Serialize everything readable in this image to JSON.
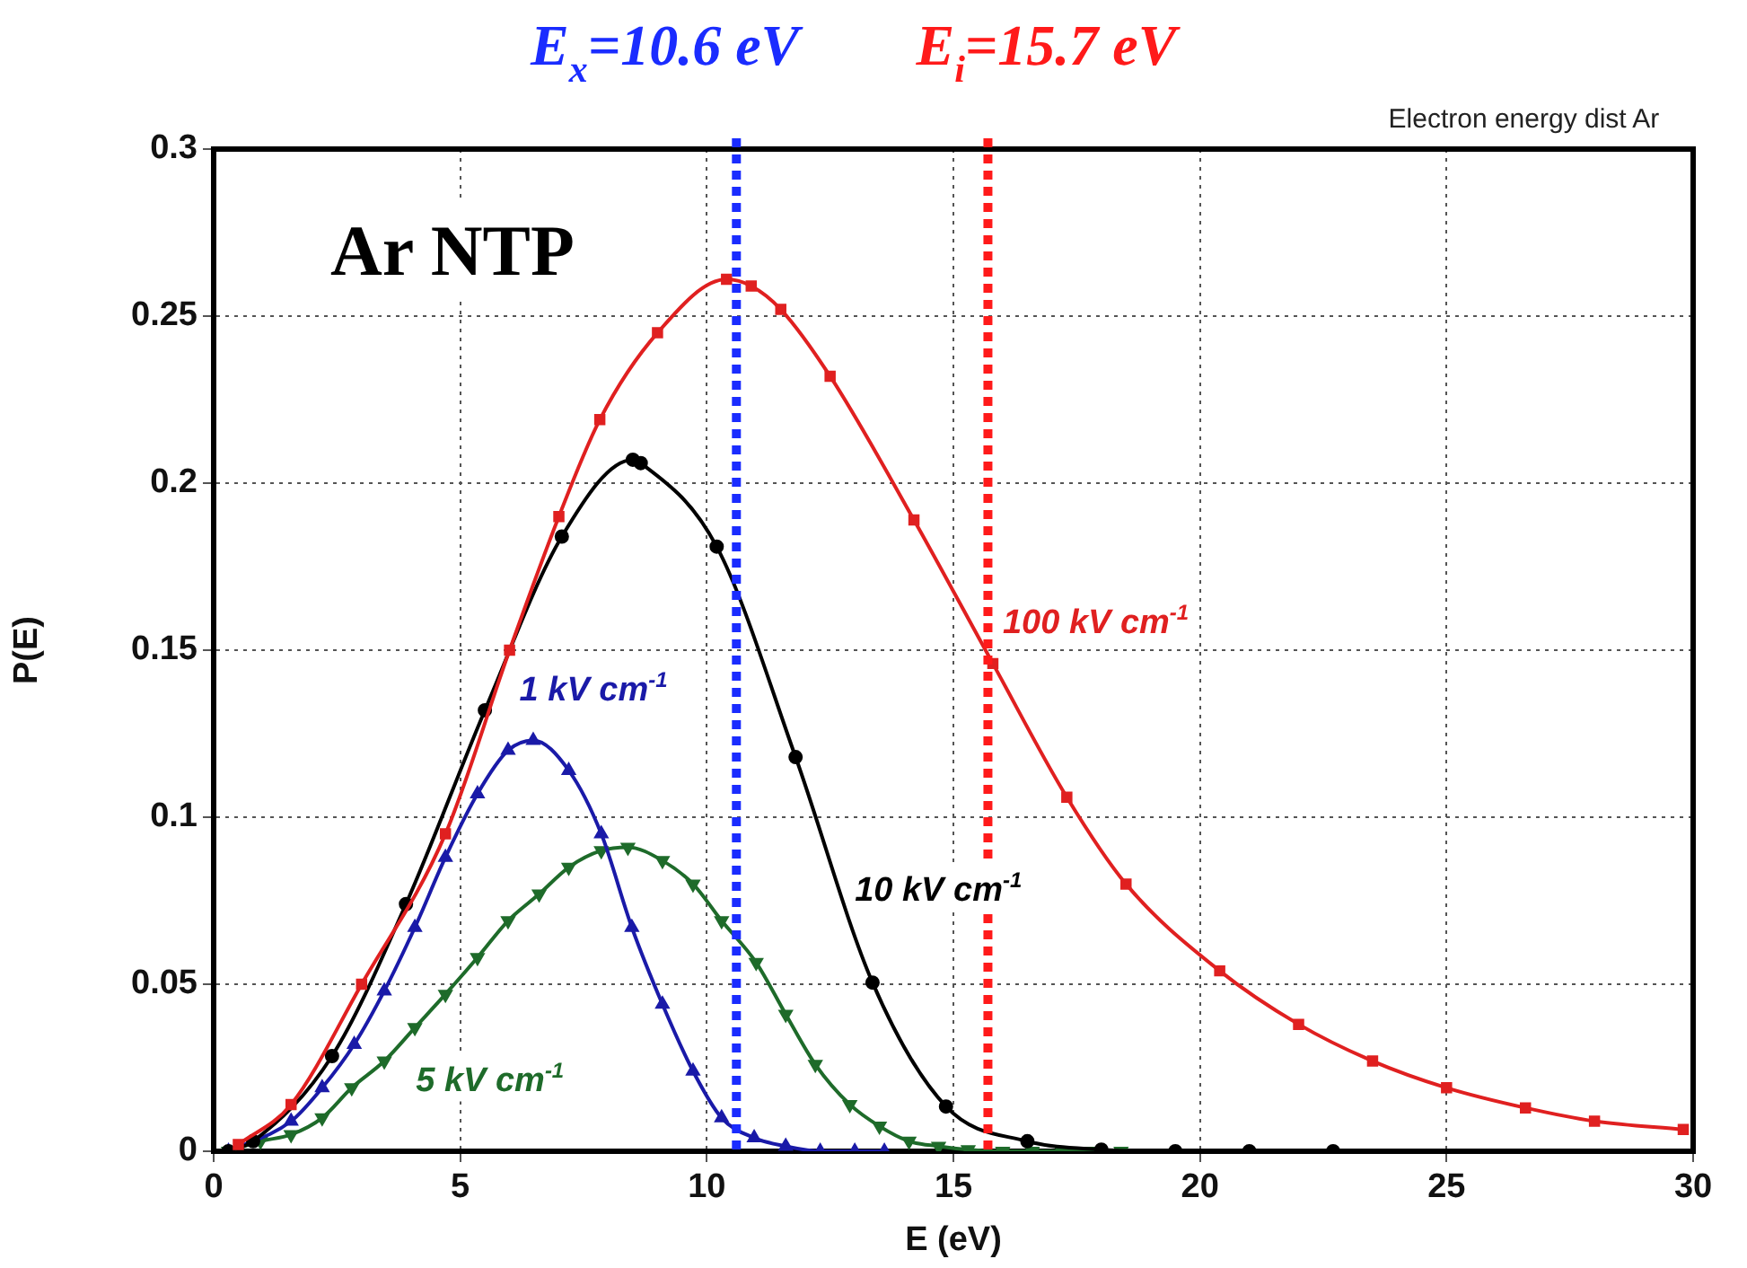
{
  "chart_data": {
    "type": "line",
    "title": "Electron energy dist Ar",
    "xlabel": "E (eV)",
    "ylabel": "P(E)",
    "xlim": [
      0,
      30
    ],
    "xticks": [
      0,
      5,
      10,
      15,
      20,
      25,
      30
    ],
    "ylim": [
      0,
      0.3
    ],
    "yticks": [
      0,
      0.05,
      0.1,
      0.15,
      0.2,
      0.25,
      0.3
    ],
    "grid": true,
    "legend": false,
    "line_style": "solid",
    "annotations": [
      "Ar NTP"
    ],
    "ref_lines": [
      {
        "axis": "x",
        "value": 10.6,
        "label": "E$_{x}$=10.6 eV",
        "color": "#1a2cff",
        "line_style": "dotted"
      },
      {
        "axis": "x",
        "value": 15.7,
        "label": "E$_{i}$=15.7 eV",
        "color": "#ff1a1a",
        "line_style": "dotted"
      }
    ],
    "series": [
      {
        "name": "100 kV cm$^{-1}$",
        "color": "#e02020",
        "marker": "square",
        "x": [
          0.5,
          1.57,
          3,
          4.7,
          6,
          7,
          7.83,
          9,
          10.4,
          10.9,
          11.5,
          12.5,
          14.2,
          15.8,
          17.3,
          18.5,
          20.4,
          22,
          23.5,
          25,
          26.6,
          28,
          29.8
        ],
        "values": [
          0.002,
          0.014,
          0.05,
          0.095,
          0.15,
          0.19,
          0.219,
          0.245,
          0.261,
          0.259,
          0.252,
          0.232,
          0.189,
          0.146,
          0.106,
          0.08,
          0.054,
          0.038,
          0.027,
          0.019,
          0.013,
          0.009,
          0.0065
        ]
      },
      {
        "name": "10 kV cm$^{-1}$",
        "color": "#000000",
        "marker": "circle",
        "x": [
          0.3,
          0.8,
          2.4,
          3.9,
          5.5,
          7.06,
          8.5,
          8.66,
          10.2,
          11.8,
          13.36,
          14.85,
          16.5,
          18,
          19.5,
          21,
          22.7
        ],
        "values": [
          0,
          0.003,
          0.0285,
          0.074,
          0.132,
          0.184,
          0.207,
          0.206,
          0.181,
          0.118,
          0.0505,
          0.0134,
          0.003,
          0.0005,
          0,
          0,
          0
        ]
      },
      {
        "name": "1 kV cm$^{-1}$",
        "color": "#1a1aa8",
        "marker": "triangle",
        "x": [
          0.3,
          1.57,
          2.2,
          2.85,
          3.46,
          4.08,
          4.7,
          5.35,
          5.97,
          6.48,
          7.2,
          7.86,
          8.48,
          9.1,
          9.72,
          10.3,
          10.96,
          11.6,
          12.3,
          13,
          13.6
        ],
        "values": [
          0,
          0.009,
          0.019,
          0.032,
          0.048,
          0.067,
          0.088,
          0.107,
          0.12,
          0.123,
          0.114,
          0.095,
          0.067,
          0.044,
          0.024,
          0.01,
          0.004,
          0.0015,
          0,
          0,
          0
        ]
      },
      {
        "name": "5 kV cm$^{-1}$",
        "color": "#1e6b2a",
        "marker": "triangle-down",
        "x": [
          0.3,
          0.95,
          1.57,
          2.2,
          2.8,
          3.46,
          4.08,
          4.7,
          5.35,
          5.97,
          6.6,
          7.2,
          7.86,
          8.4,
          9.1,
          9.72,
          10.3,
          11,
          11.6,
          12.2,
          12.9,
          13.5,
          14.1,
          14.7,
          15.3,
          16,
          16.6,
          17.2,
          17.8,
          18.4
        ],
        "values": [
          0,
          0.003,
          0.005,
          0.01,
          0.019,
          0.027,
          0.037,
          0.047,
          0.058,
          0.069,
          0.077,
          0.085,
          0.09,
          0.091,
          0.087,
          0.08,
          0.069,
          0.0565,
          0.041,
          0.026,
          0.014,
          0.0075,
          0.003,
          0.0015,
          0.0005,
          0,
          0,
          0,
          0,
          0
        ]
      }
    ]
  }
}
